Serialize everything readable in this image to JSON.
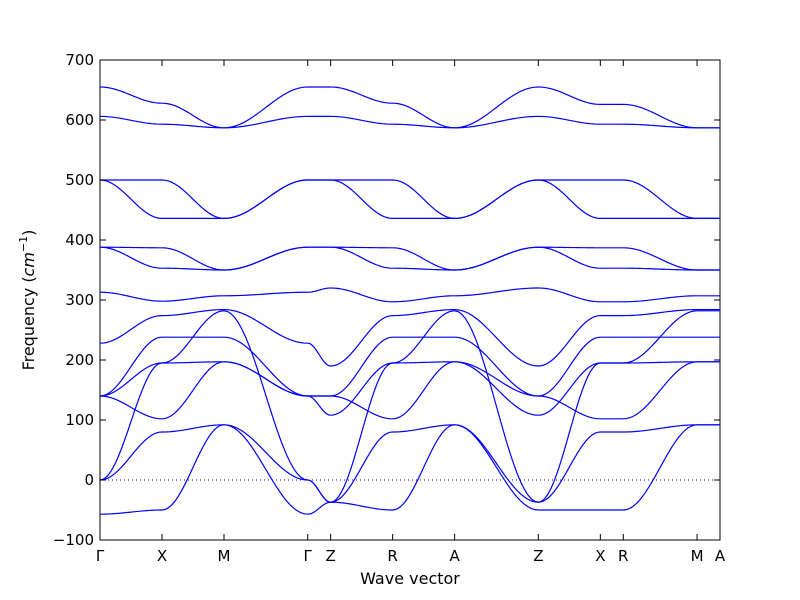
{
  "chart_data": {
    "type": "line",
    "title": "",
    "xlabel": "Wave vector",
    "ylabel_text": "Frequency (",
    "ylabel_unit_base": "cm",
    "ylabel_unit_exp": "−1",
    "ylabel_close": ")",
    "ylim": [
      -100,
      700
    ],
    "yticks": [
      -100,
      0,
      100,
      200,
      300,
      400,
      500,
      600,
      700
    ],
    "grid": false,
    "legend": "none",
    "line_color": "#0000ff",
    "zero_line_color": "#0000ff",
    "xlim": [
      0,
      1
    ],
    "x_ticks": [
      {
        "label": "Γ",
        "x": 0.0
      },
      {
        "label": "X",
        "x": 0.1
      },
      {
        "label": "M",
        "x": 0.2
      },
      {
        "label": "Γ",
        "x": 0.335
      },
      {
        "label": "Z",
        "x": 0.372
      },
      {
        "label": "R",
        "x": 0.472
      },
      {
        "label": "A",
        "x": 0.572
      },
      {
        "label": "Z",
        "x": 0.707
      },
      {
        "label": "X",
        "x": 0.807
      },
      {
        "label": "R",
        "x": 0.844
      },
      {
        "label": "M",
        "x": 0.963
      },
      {
        "label": "A",
        "x": 1.0
      }
    ],
    "series": [
      {
        "x": [
          0,
          0.1,
          0.2,
          0.335,
          0.372,
          0.472,
          0.572,
          0.707,
          0.807,
          0.844,
          0.963,
          1.0
        ],
        "y": [
          655,
          628,
          587,
          655,
          655,
          628,
          587,
          655,
          626,
          626,
          587,
          587
        ]
      },
      {
        "x": [
          0,
          0.1,
          0.2,
          0.335,
          0.372,
          0.472,
          0.572,
          0.707,
          0.807,
          0.844,
          0.963,
          1.0
        ],
        "y": [
          606,
          593,
          587,
          606,
          606,
          593,
          587,
          606,
          593,
          593,
          587,
          587
        ]
      },
      {
        "x": [
          0,
          0.1,
          0.2,
          0.335,
          0.372,
          0.472,
          0.572,
          0.707,
          0.807,
          0.844,
          0.963,
          1.0
        ],
        "y": [
          500,
          500,
          436,
          500,
          500,
          500,
          436,
          500,
          500,
          500,
          436,
          436
        ]
      },
      {
        "x": [
          0,
          0.1,
          0.2,
          0.335,
          0.372,
          0.472,
          0.572,
          0.707,
          0.807,
          0.844,
          0.963,
          1.0
        ],
        "y": [
          500,
          436,
          436,
          500,
          500,
          436,
          436,
          500,
          436,
          436,
          436,
          436
        ]
      },
      {
        "x": [
          0,
          0.1,
          0.2,
          0.335,
          0.372,
          0.472,
          0.572,
          0.707,
          0.807,
          0.844,
          0.963,
          1.0
        ],
        "y": [
          388,
          387,
          350,
          388,
          388,
          387,
          350,
          388,
          387,
          387,
          350,
          350
        ]
      },
      {
        "x": [
          0,
          0.1,
          0.2,
          0.335,
          0.372,
          0.472,
          0.572,
          0.707,
          0.807,
          0.844,
          0.963,
          1.0
        ],
        "y": [
          388,
          353,
          350,
          388,
          388,
          353,
          350,
          388,
          353,
          353,
          350,
          350
        ]
      },
      {
        "x": [
          0,
          0.1,
          0.2,
          0.335,
          0.372,
          0.472,
          0.572,
          0.707,
          0.807,
          0.844,
          0.963,
          1.0
        ],
        "y": [
          313,
          298,
          307,
          313,
          320,
          297,
          307,
          320,
          297,
          297,
          307,
          307
        ]
      },
      {
        "x": [
          0,
          0.1,
          0.2,
          0.335,
          0.372,
          0.472,
          0.572,
          0.707,
          0.807,
          0.844,
          0.963,
          1.0
        ],
        "y": [
          228,
          274,
          284,
          228,
          190,
          274,
          284,
          190,
          274,
          274,
          284,
          284
        ]
      },
      {
        "x": [
          0,
          0.1,
          0.2,
          0.335,
          0.372,
          0.472,
          0.572,
          0.707,
          0.807,
          0.844,
          0.963,
          1.0
        ],
        "y": [
          140,
          238,
          238,
          140,
          140,
          238,
          238,
          140,
          238,
          238,
          238,
          238
        ]
      },
      {
        "x": [
          0,
          0.1,
          0.2,
          0.335,
          0.372,
          0.472,
          0.572,
          0.707,
          0.807,
          0.844,
          0.963,
          1.0
        ],
        "y": [
          140,
          195,
          197,
          140,
          108,
          195,
          197,
          108,
          195,
          195,
          197,
          197
        ]
      },
      {
        "x": [
          0,
          0.1,
          0.2,
          0.335,
          0.372,
          0.472,
          0.572,
          0.707,
          0.807,
          0.844,
          0.963,
          1.0
        ],
        "y": [
          0,
          195,
          282,
          0,
          -37,
          195,
          282,
          -37,
          195,
          195,
          282,
          282
        ]
      },
      {
        "x": [
          0,
          0.1,
          0.2,
          0.335,
          0.372,
          0.472,
          0.572,
          0.707,
          0.807,
          0.844,
          0.963,
          1.0
        ],
        "y": [
          140,
          102,
          197,
          140,
          140,
          102,
          197,
          140,
          102,
          102,
          197,
          197
        ]
      },
      {
        "x": [
          0,
          0.1,
          0.2,
          0.335,
          0.372,
          0.472,
          0.572,
          0.707,
          0.807,
          0.844,
          0.963,
          1.0
        ],
        "y": [
          0,
          80,
          92,
          0,
          -37,
          80,
          92,
          -37,
          80,
          80,
          92,
          92
        ]
      },
      {
        "x": [
          0,
          0.1,
          0.2,
          0.335,
          0.372,
          0.472,
          0.572,
          0.707,
          0.807,
          0.844,
          0.963,
          1.0
        ],
        "y": [
          -57,
          -50,
          92,
          -57,
          -37,
          -50,
          92,
          -50,
          -50,
          -50,
          92,
          92
        ]
      }
    ]
  }
}
